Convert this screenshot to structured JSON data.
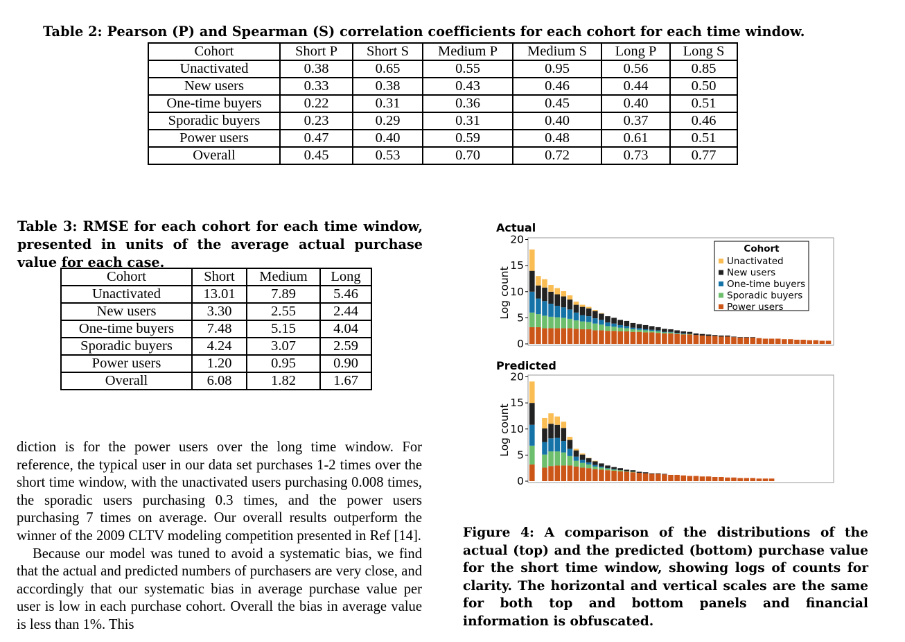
{
  "table2": {
    "caption": "Table 2: Pearson (P) and Spearman (S) correlation coefficients for each cohort for each time window.",
    "headers": [
      "Cohort",
      "Short P",
      "Short S",
      "Medium P",
      "Medium S",
      "Long P",
      "Long S"
    ],
    "rows": [
      [
        "Unactivated",
        "0.38",
        "0.65",
        "0.55",
        "0.95",
        "0.56",
        "0.85"
      ],
      [
        "New users",
        "0.33",
        "0.38",
        "0.43",
        "0.46",
        "0.44",
        "0.50"
      ],
      [
        "One-time buyers",
        "0.22",
        "0.31",
        "0.36",
        "0.45",
        "0.40",
        "0.51"
      ],
      [
        "Sporadic buyers",
        "0.23",
        "0.29",
        "0.31",
        "0.40",
        "0.37",
        "0.46"
      ],
      [
        "Power users",
        "0.47",
        "0.40",
        "0.59",
        "0.48",
        "0.61",
        "0.51"
      ],
      [
        "Overall",
        "0.45",
        "0.53",
        "0.70",
        "0.72",
        "0.73",
        "0.77"
      ]
    ]
  },
  "table3": {
    "caption": "Table 3: RMSE for each cohort for each time window, presented in units of the average actual purchase value for each case.",
    "headers": [
      "Cohort",
      "Short",
      "Medium",
      "Long"
    ],
    "rows": [
      [
        "Unactivated",
        "13.01",
        "7.89",
        "5.46"
      ],
      [
        "New users",
        "3.30",
        "2.55",
        "2.44"
      ],
      [
        "One-time buyers",
        "7.48",
        "5.15",
        "4.04"
      ],
      [
        "Sporadic buyers",
        "4.24",
        "3.07",
        "2.59"
      ],
      [
        "Power users",
        "1.20",
        "0.95",
        "0.90"
      ],
      [
        "Overall",
        "6.08",
        "1.82",
        "1.67"
      ]
    ]
  },
  "body": {
    "paragraph1": "diction is for the power users over the long time window. For reference, the typical user in our data set purchases 1-2 times over the short time window, with the unactivated users purchasing 0.008 times, the sporadic users purchasing 0.3 times, and the power users purchasing 7 times on average. Our overall results outperform the winner of the 2009 CLTV modeling competition presented in Ref [14].",
    "paragraph2": "Because our model was tuned to avoid a systematic bias, we find that the actual and predicted numbers of purchasers are very close, and accordingly that our systematic bias in average purchase value per user is low in each purchase cohort. Overall the bias in average value is less than 1%. This"
  },
  "figure": {
    "caption": "Figure 4: A comparison of the distributions of the actual (top) and the predicted (bottom) purchase value for the short time window, showing logs of counts for clarity. The horizontal and vertical scales are the same for both top and bottom panels and financial information is obfuscated."
  },
  "chart_data": [
    {
      "type": "bar",
      "stacked": true,
      "title": "Actual",
      "xlabel": "",
      "ylabel": "Log count",
      "ylim": [
        0,
        20
      ],
      "yticks": [
        0,
        5,
        10,
        15,
        20
      ],
      "legend_title": "Cohort",
      "legend_position": "top-right",
      "colors": {
        "Unactivated": "#f9bd54",
        "New users": "#222222",
        "One-time buyers": "#1673a8",
        "Sporadic buyers": "#6dbf6d",
        "Power users": "#cc5518"
      },
      "series": [
        {
          "name": "Power users",
          "values": [
            3.2,
            3.2,
            3,
            3,
            3,
            3,
            3,
            2.9,
            2.8,
            2.8,
            2.6,
            2.6,
            2.5,
            2.5,
            2.4,
            2.4,
            2.3,
            2.3,
            2.2,
            2.2,
            2.1,
            2,
            2,
            1.9,
            1.8,
            1.8,
            1.7,
            1.6,
            1.5,
            1.5,
            1.4,
            1.4,
            1.3,
            1.2,
            1.2,
            1.2,
            1.1,
            1,
            1,
            1,
            0.9,
            0.9,
            0.8,
            0.8,
            0.7,
            0.7,
            0.6,
            0.6
          ]
        },
        {
          "name": "Sporadic buyers",
          "values": [
            2.8,
            2.5,
            2.4,
            2.2,
            2.1,
            2,
            1.8,
            1.6,
            1.5,
            1.4,
            1.3,
            1.1,
            0.9,
            0.8,
            0.7,
            0.6,
            0.5,
            0.4,
            0.4,
            0.3,
            0.3,
            0.2,
            0.2,
            0.1,
            0.1,
            0.1,
            0,
            0,
            0,
            0,
            0,
            0,
            0,
            0,
            0,
            0,
            0,
            0,
            0,
            0,
            0,
            0,
            0,
            0,
            0,
            0,
            0,
            0
          ]
        },
        {
          "name": "One-time buyers",
          "values": [
            4,
            3,
            2.8,
            2.5,
            2.2,
            2,
            1.8,
            1.5,
            1.2,
            1.1,
            1,
            0.9,
            0.7,
            0.6,
            0.5,
            0.4,
            0.3,
            0.3,
            0.2,
            0.2,
            0.2,
            0.1,
            0.1,
            0.1,
            0.1,
            0,
            0,
            0,
            0,
            0,
            0,
            0,
            0,
            0,
            0,
            0,
            0,
            0,
            0,
            0,
            0,
            0,
            0,
            0,
            0,
            0,
            0,
            0
          ]
        },
        {
          "name": "New users",
          "values": [
            4,
            2.5,
            2.6,
            2.3,
            2.2,
            2.1,
            1.9,
            1.5,
            1.6,
            1.5,
            1.4,
            1.2,
            1.2,
            1.1,
            1,
            1,
            0.9,
            0.8,
            0.8,
            0.7,
            0.6,
            0.6,
            0.5,
            0.5,
            0.4,
            0.4,
            0.3,
            0.3,
            0.3,
            0.2,
            0.2,
            0.2,
            0.1,
            0.1,
            0.1,
            0.1,
            0,
            0,
            0,
            0,
            0,
            0,
            0,
            0,
            0,
            0,
            0,
            0
          ]
        },
        {
          "name": "Unactivated",
          "values": [
            4.1,
            1.8,
            1.6,
            1.3,
            1.2,
            1,
            0.8,
            0.6,
            0.4,
            0.3,
            0.2,
            0.1,
            0,
            0,
            0,
            0,
            0,
            0,
            0,
            0,
            0,
            0,
            0,
            0,
            0,
            0,
            0,
            0,
            0,
            0,
            0,
            0,
            0,
            0,
            0,
            0,
            0,
            0,
            0,
            0,
            0,
            0,
            0,
            0,
            0,
            0,
            0,
            0
          ]
        }
      ]
    },
    {
      "type": "bar",
      "stacked": true,
      "title": "Predicted",
      "xlabel": "",
      "ylabel": "Log count",
      "ylim": [
        0,
        20
      ],
      "yticks": [
        0,
        5,
        10,
        15,
        20
      ],
      "series": [
        {
          "name": "Power users",
          "values": [
            3.2,
            0,
            2.6,
            2.9,
            3,
            3,
            3,
            2.8,
            2.6,
            2.5,
            2.3,
            2.2,
            2.1,
            2,
            1.9,
            1.8,
            1.7,
            1.6,
            1.5,
            1.4,
            1.4,
            1.3,
            1.2,
            1.2,
            1.1,
            1,
            1,
            0.9,
            0.9,
            0.8,
            0.8,
            0.7,
            0.7,
            0.6,
            0.6,
            0.6,
            0.5,
            0.5,
            0.5
          ]
        },
        {
          "name": "Sporadic buyers",
          "values": [
            3.6,
            0,
            2.5,
            2.8,
            2.7,
            2.5,
            1.8,
            1.1,
            0.9,
            0.7,
            0.5,
            0.4,
            0.3,
            0.2,
            0.2,
            0.1,
            0.1,
            0,
            0,
            0,
            0,
            0,
            0,
            0,
            0,
            0,
            0,
            0,
            0,
            0,
            0,
            0,
            0,
            0,
            0,
            0,
            0,
            0,
            0
          ]
        },
        {
          "name": "One-time buyers",
          "values": [
            4,
            0,
            2.4,
            2.5,
            2.6,
            2.2,
            1.4,
            0.8,
            0.6,
            0.4,
            0.3,
            0.2,
            0.1,
            0.1,
            0,
            0,
            0,
            0,
            0,
            0,
            0,
            0,
            0,
            0,
            0,
            0,
            0,
            0,
            0,
            0,
            0,
            0,
            0,
            0,
            0,
            0,
            0,
            0,
            0
          ]
        },
        {
          "name": "New users",
          "values": [
            4.2,
            0,
            2.6,
            2.8,
            2.5,
            2.5,
            1.7,
            1.2,
            1,
            0.8,
            0.7,
            0.6,
            0.5,
            0.4,
            0.4,
            0.3,
            0.3,
            0.2,
            0.2,
            0.1,
            0.1,
            0.1,
            0,
            0,
            0,
            0,
            0,
            0,
            0,
            0,
            0,
            0,
            0,
            0,
            0,
            0,
            0,
            0,
            0
          ]
        },
        {
          "name": "Unactivated",
          "values": [
            4.1,
            0,
            2,
            2,
            1.6,
            1.2,
            0.6,
            0.3,
            0.2,
            0.1,
            0.1,
            0,
            0,
            0,
            0,
            0,
            0,
            0,
            0,
            0,
            0,
            0,
            0,
            0,
            0,
            0,
            0,
            0,
            0,
            0,
            0,
            0,
            0,
            0,
            0,
            0,
            0,
            0,
            0
          ]
        }
      ]
    }
  ]
}
